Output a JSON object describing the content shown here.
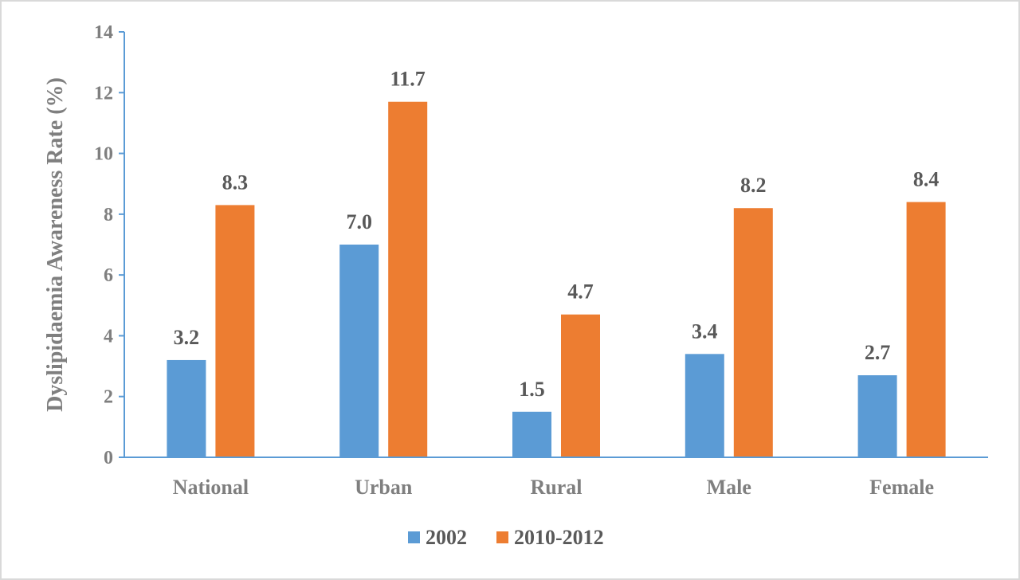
{
  "chart_data": {
    "type": "bar",
    "title": "",
    "xlabel": "",
    "ylabel": "Dyslipidaemia Awareness Rate (%)",
    "ylim": [
      0,
      14
    ],
    "yticks": [
      0,
      2,
      4,
      6,
      8,
      10,
      12,
      14
    ],
    "categories": [
      "National",
      "Urban",
      "Rural",
      "Male",
      "Female"
    ],
    "series": [
      {
        "name": "2002",
        "color": "#5b9bd5",
        "values": [
          3.2,
          7.0,
          1.5,
          3.4,
          2.7
        ],
        "labels": [
          "3.2",
          "7.0",
          "1.5",
          "3.4",
          "2.7"
        ]
      },
      {
        "name": "2010-2012",
        "color": "#ed7d31",
        "values": [
          8.3,
          11.7,
          4.7,
          8.2,
          8.4
        ],
        "labels": [
          "8.3",
          "11.7",
          "4.7",
          "8.2",
          "8.4"
        ]
      }
    ],
    "grid": false,
    "legend_position": "bottom",
    "axis_color": "#5b9bd5"
  }
}
